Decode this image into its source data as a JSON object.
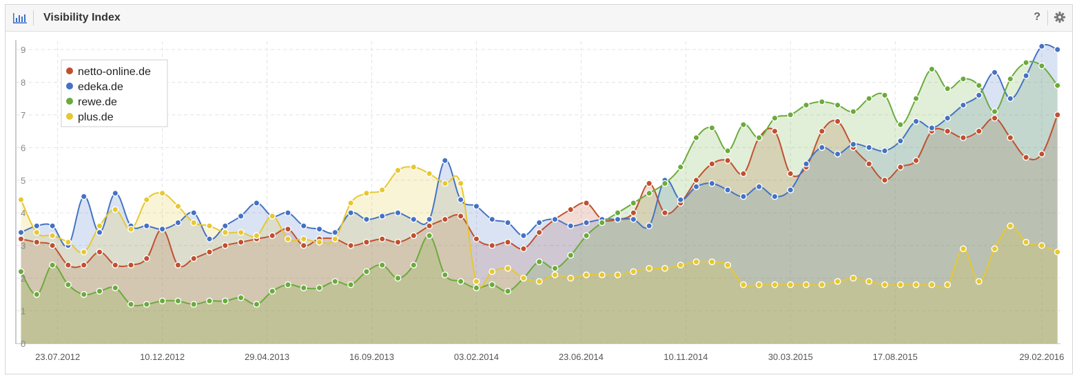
{
  "header": {
    "title": "Visibility Index",
    "help_label": "?",
    "icon": "bar-chart-icon",
    "settings_icon": "gear-icon"
  },
  "chart_data": {
    "type": "area",
    "x_labels": [
      "23.07.2012",
      "10.12.2012",
      "29.04.2013",
      "16.09.2013",
      "03.02.2014",
      "23.06.2014",
      "10.11.2014",
      "30.03.2015",
      "17.08.2015",
      "29.02.2016"
    ],
    "ylim": [
      0,
      9
    ],
    "yticks": [
      0,
      1,
      2,
      3,
      4,
      5,
      6,
      7,
      8,
      9
    ],
    "grid": true,
    "legend_position": "top-left",
    "x": [
      "2012-06-04",
      "2012-06-25",
      "2012-07-16",
      "2012-08-06",
      "2012-08-27",
      "2012-09-17",
      "2012-10-08",
      "2012-10-29",
      "2012-11-19",
      "2012-12-10",
      "2012-12-31",
      "2013-01-21",
      "2013-02-11",
      "2013-03-04",
      "2013-03-25",
      "2013-04-15",
      "2013-05-06",
      "2013-05-27",
      "2013-06-17",
      "2013-07-08",
      "2013-07-29",
      "2013-08-19",
      "2013-09-09",
      "2013-09-30",
      "2013-10-21",
      "2013-11-11",
      "2013-12-02",
      "2013-12-23",
      "2014-01-13",
      "2014-02-03",
      "2014-02-24",
      "2014-03-17",
      "2014-04-07",
      "2014-04-28",
      "2014-05-19",
      "2014-06-09",
      "2014-06-30",
      "2014-07-21",
      "2014-08-11",
      "2014-09-01",
      "2014-09-22",
      "2014-10-13",
      "2014-11-03",
      "2014-11-24",
      "2014-12-15",
      "2015-01-05",
      "2015-01-26",
      "2015-02-16",
      "2015-03-09",
      "2015-03-30",
      "2015-04-20",
      "2015-05-11",
      "2015-06-01",
      "2015-06-22",
      "2015-07-13",
      "2015-08-03",
      "2015-08-24",
      "2015-09-14",
      "2015-10-05",
      "2015-10-26",
      "2015-11-16",
      "2015-12-07",
      "2015-12-28",
      "2016-01-18",
      "2016-02-08",
      "2016-02-29",
      "2016-03-21"
    ],
    "series": [
      {
        "name": "netto-online.de",
        "color": "#c0502e",
        "values": [
          3.2,
          3.1,
          3.0,
          2.4,
          2.4,
          2.8,
          2.4,
          2.4,
          2.6,
          3.5,
          2.4,
          2.6,
          2.8,
          3.0,
          3.1,
          3.2,
          3.3,
          3.5,
          3.0,
          3.2,
          3.2,
          3.0,
          3.1,
          3.2,
          3.1,
          3.3,
          3.6,
          3.8,
          3.9,
          3.2,
          3.0,
          3.1,
          2.9,
          3.4,
          3.8,
          4.1,
          4.3,
          3.8,
          3.8,
          4.0,
          4.9,
          4.0,
          4.3,
          5.0,
          5.5,
          5.6,
          5.2,
          6.3,
          6.5,
          5.2,
          5.4,
          6.5,
          6.8,
          6.0,
          5.5,
          5.0,
          5.4,
          5.6,
          6.5,
          6.5,
          6.3,
          6.5,
          6.9,
          6.3,
          5.7,
          5.8,
          7.0
        ]
      },
      {
        "name": "edeka.de",
        "color": "#4472c4",
        "values": [
          3.4,
          3.6,
          3.6,
          3.0,
          4.5,
          3.4,
          4.6,
          3.6,
          3.6,
          3.5,
          3.7,
          4.0,
          3.2,
          3.6,
          3.9,
          4.3,
          3.9,
          4.0,
          3.6,
          3.5,
          3.4,
          4.0,
          3.8,
          3.9,
          4.0,
          3.8,
          3.8,
          5.6,
          4.4,
          4.2,
          3.8,
          3.7,
          3.3,
          3.7,
          3.8,
          3.6,
          3.7,
          3.8,
          3.8,
          3.8,
          3.6,
          5.0,
          4.4,
          4.8,
          4.9,
          4.7,
          4.5,
          4.8,
          4.5,
          4.7,
          5.5,
          6.0,
          5.8,
          6.1,
          6.0,
          5.9,
          6.2,
          6.8,
          6.6,
          6.9,
          7.3,
          7.6,
          8.3,
          7.5,
          8.2,
          9.1,
          9.0
        ]
      },
      {
        "name": "rewe.de",
        "color": "#6aab3b",
        "values": [
          2.2,
          1.5,
          2.4,
          1.8,
          1.5,
          1.6,
          1.7,
          1.2,
          1.2,
          1.3,
          1.3,
          1.2,
          1.3,
          1.3,
          1.4,
          1.2,
          1.6,
          1.8,
          1.7,
          1.7,
          1.9,
          1.8,
          2.2,
          2.4,
          2.0,
          2.4,
          3.3,
          2.1,
          1.9,
          1.7,
          1.8,
          1.6,
          2.0,
          2.5,
          2.3,
          2.7,
          3.3,
          3.7,
          4.0,
          4.3,
          4.6,
          4.9,
          5.4,
          6.3,
          6.6,
          5.9,
          6.7,
          6.3,
          6.9,
          7.0,
          7.3,
          7.4,
          7.3,
          7.1,
          7.5,
          7.6,
          6.7,
          7.5,
          8.4,
          7.8,
          8.1,
          7.9,
          7.1,
          8.1,
          8.6,
          8.5,
          7.9
        ]
      },
      {
        "name": "plus.de",
        "color": "#e6c830",
        "values": [
          4.4,
          3.4,
          3.3,
          3.1,
          2.8,
          3.6,
          4.1,
          3.5,
          4.4,
          4.6,
          4.2,
          3.7,
          3.6,
          3.4,
          3.4,
          3.3,
          3.9,
          3.2,
          3.2,
          3.1,
          3.2,
          4.3,
          4.6,
          4.7,
          5.3,
          5.4,
          5.2,
          4.9,
          4.9,
          1.9,
          2.2,
          2.3,
          2.0,
          1.9,
          2.1,
          2.0,
          2.1,
          2.1,
          2.1,
          2.2,
          2.3,
          2.3,
          2.4,
          2.5,
          2.5,
          2.4,
          1.8,
          1.8,
          1.8,
          1.8,
          1.8,
          1.8,
          1.9,
          2.0,
          1.9,
          1.8,
          1.8,
          1.8,
          1.8,
          1.8,
          2.9,
          1.9,
          2.9,
          3.6,
          3.1,
          3.0,
          2.8
        ]
      }
    ]
  }
}
